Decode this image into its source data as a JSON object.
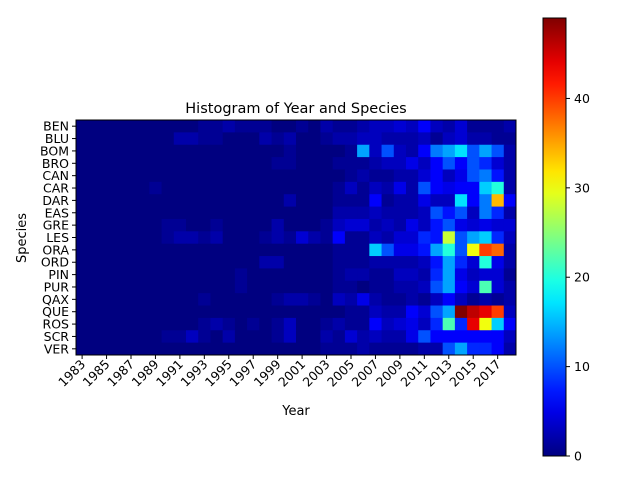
{
  "chart_data": {
    "type": "heatmap",
    "title": "Histogram of Year and Species",
    "xlabel": "Year",
    "ylabel": "Species",
    "colormap": "jet",
    "colorbar": {
      "min": 0,
      "max": 49,
      "ticks": [
        0,
        10,
        20,
        30,
        40
      ]
    },
    "x_years": [
      1983,
      1984,
      1985,
      1986,
      1987,
      1988,
      1989,
      1990,
      1991,
      1992,
      1993,
      1994,
      1995,
      1996,
      1997,
      1998,
      1999,
      2000,
      2001,
      2002,
      2003,
      2004,
      2005,
      2006,
      2007,
      2008,
      2009,
      2010,
      2011,
      2012,
      2013,
      2014,
      2015,
      2016,
      2017,
      2018
    ],
    "x_tick_labels": [
      "1983",
      "1985",
      "1987",
      "1989",
      "1991",
      "1993",
      "1995",
      "1997",
      "1999",
      "2001",
      "2003",
      "2005",
      "2007",
      "2009",
      "2011",
      "2013",
      "2015",
      "2017"
    ],
    "y_categories": [
      "BEN",
      "BLU",
      "BOM",
      "BRO",
      "CAN",
      "CAR",
      "DAR",
      "EAS",
      "GRE",
      "LES",
      "ORA",
      "ORD",
      "PIN",
      "PUR",
      "QAX",
      "QUE",
      "ROS",
      "SCR",
      "VER"
    ],
    "y_tick_labels": [
      "BEN",
      "BLU",
      "BOM",
      "BRO",
      "CAN",
      "CAR",
      "DAR",
      "EAS",
      "GRE",
      "LES",
      "ORA",
      "ORD",
      "PIN",
      "PUR",
      "QAX",
      "QUE",
      "ROS",
      "SCR",
      "VER"
    ],
    "values": [
      [
        0,
        0,
        0,
        0,
        0,
        0,
        0,
        0,
        0,
        0,
        1,
        1,
        2,
        1,
        1,
        1,
        0,
        0,
        1,
        0,
        2,
        1,
        1,
        2,
        3,
        3,
        4,
        3,
        6,
        3,
        2,
        4,
        1,
        1,
        1,
        2
      ],
      [
        0,
        0,
        0,
        0,
        0,
        0,
        0,
        0,
        2,
        2,
        1,
        1,
        0,
        0,
        0,
        2,
        1,
        2,
        0,
        0,
        1,
        2,
        2,
        3,
        3,
        2,
        2,
        2,
        3,
        1,
        3,
        4,
        2,
        2,
        1,
        1
      ],
      [
        0,
        0,
        0,
        0,
        0,
        0,
        0,
        0,
        0,
        0,
        0,
        0,
        0,
        0,
        0,
        0,
        0,
        1,
        0,
        0,
        0,
        0,
        1,
        14,
        3,
        10,
        3,
        2,
        6,
        12,
        14,
        17,
        10,
        14,
        10,
        2
      ],
      [
        0,
        0,
        0,
        0,
        0,
        0,
        0,
        0,
        0,
        0,
        0,
        0,
        0,
        0,
        0,
        0,
        1,
        1,
        0,
        0,
        0,
        1,
        1,
        1,
        2,
        3,
        3,
        5,
        3,
        6,
        10,
        6,
        10,
        8,
        4,
        2
      ],
      [
        0,
        0,
        0,
        0,
        0,
        0,
        0,
        0,
        0,
        0,
        0,
        0,
        0,
        0,
        0,
        0,
        0,
        0,
        0,
        0,
        0,
        0,
        1,
        2,
        1,
        1,
        2,
        2,
        4,
        6,
        3,
        5,
        10,
        12,
        7,
        2
      ],
      [
        0,
        0,
        0,
        0,
        0,
        0,
        1,
        0,
        0,
        0,
        0,
        0,
        0,
        0,
        0,
        0,
        0,
        0,
        0,
        0,
        0,
        1,
        3,
        1,
        3,
        2,
        5,
        2,
        10,
        6,
        5,
        6,
        6,
        16,
        20,
        2
      ],
      [
        0,
        0,
        0,
        0,
        0,
        0,
        0,
        0,
        0,
        0,
        0,
        0,
        0,
        0,
        0,
        0,
        0,
        2,
        0,
        0,
        0,
        1,
        1,
        1,
        6,
        1,
        2,
        2,
        5,
        3,
        3,
        17,
        6,
        12,
        34,
        6
      ],
      [
        0,
        0,
        0,
        0,
        0,
        0,
        0,
        0,
        0,
        0,
        0,
        0,
        0,
        0,
        0,
        0,
        0,
        0,
        0,
        0,
        0,
        2,
        2,
        2,
        3,
        2,
        2,
        2,
        3,
        10,
        7,
        10,
        3,
        12,
        8,
        2
      ],
      [
        0,
        0,
        0,
        0,
        0,
        0,
        0,
        1,
        1,
        0,
        0,
        1,
        0,
        0,
        0,
        0,
        2,
        0,
        0,
        0,
        1,
        3,
        4,
        4,
        2,
        3,
        2,
        5,
        3,
        7,
        10,
        5,
        4,
        5,
        4,
        4
      ],
      [
        0,
        0,
        0,
        0,
        0,
        0,
        0,
        1,
        2,
        2,
        1,
        2,
        0,
        0,
        0,
        1,
        2,
        1,
        4,
        2,
        1,
        6,
        1,
        1,
        3,
        2,
        4,
        4,
        8,
        7,
        28,
        10,
        14,
        16,
        8,
        3
      ],
      [
        0,
        0,
        0,
        0,
        0,
        0,
        0,
        0,
        0,
        0,
        0,
        0,
        0,
        0,
        0,
        0,
        0,
        0,
        0,
        0,
        0,
        1,
        1,
        1,
        16,
        10,
        5,
        5,
        7,
        14,
        20,
        10,
        30,
        40,
        38,
        2
      ],
      [
        0,
        0,
        0,
        0,
        0,
        0,
        0,
        0,
        0,
        0,
        0,
        0,
        0,
        0,
        0,
        2,
        2,
        0,
        0,
        0,
        0,
        1,
        1,
        1,
        2,
        2,
        2,
        2,
        3,
        7,
        14,
        8,
        4,
        20,
        5,
        2
      ],
      [
        0,
        0,
        0,
        0,
        0,
        0,
        0,
        0,
        0,
        0,
        0,
        0,
        0,
        1,
        0,
        0,
        0,
        0,
        0,
        0,
        0,
        1,
        2,
        2,
        1,
        1,
        3,
        3,
        2,
        8,
        14,
        5,
        3,
        4,
        4,
        1
      ],
      [
        0,
        0,
        0,
        0,
        0,
        0,
        0,
        0,
        0,
        0,
        0,
        0,
        0,
        1,
        0,
        0,
        0,
        0,
        0,
        0,
        0,
        1,
        1,
        0,
        1,
        1,
        2,
        2,
        3,
        10,
        14,
        6,
        4,
        22,
        4,
        2
      ],
      [
        0,
        0,
        0,
        0,
        0,
        0,
        0,
        0,
        0,
        0,
        1,
        0,
        0,
        0,
        0,
        0,
        1,
        2,
        2,
        1,
        0,
        3,
        2,
        5,
        2,
        1,
        1,
        2,
        1,
        3,
        6,
        3,
        1,
        2,
        1,
        2
      ],
      [
        0,
        0,
        0,
        0,
        0,
        0,
        0,
        0,
        0,
        0,
        0,
        0,
        0,
        0,
        0,
        0,
        0,
        0,
        0,
        0,
        0,
        0,
        1,
        1,
        3,
        2,
        2,
        6,
        4,
        10,
        14,
        49,
        46,
        44,
        40,
        3
      ],
      [
        0,
        0,
        0,
        0,
        0,
        0,
        0,
        0,
        0,
        0,
        1,
        2,
        1,
        0,
        1,
        0,
        1,
        3,
        0,
        0,
        1,
        2,
        1,
        1,
        6,
        3,
        4,
        5,
        3,
        8,
        22,
        8,
        44,
        30,
        16,
        6
      ],
      [
        0,
        0,
        0,
        0,
        0,
        0,
        0,
        1,
        1,
        3,
        1,
        0,
        2,
        0,
        0,
        0,
        1,
        3,
        0,
        0,
        2,
        1,
        4,
        2,
        3,
        2,
        2,
        5,
        10,
        6,
        6,
        6,
        6,
        6,
        6,
        3
      ],
      [
        0,
        0,
        0,
        0,
        0,
        0,
        0,
        0,
        0,
        0,
        0,
        0,
        0,
        0,
        0,
        0,
        0,
        0,
        0,
        0,
        1,
        1,
        1,
        2,
        1,
        1,
        1,
        1,
        2,
        2,
        10,
        14,
        8,
        8,
        6,
        2
      ]
    ]
  }
}
